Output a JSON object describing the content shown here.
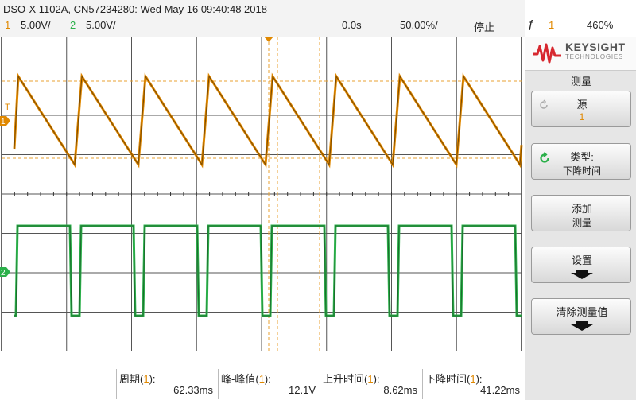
{
  "header": {
    "title": "DSO-X 1102A, CN57234280: Wed May 16 09:40:48 2018",
    "ch1_num": "1",
    "ch1_scale": "5.00V/",
    "ch2_num": "2",
    "ch2_scale": "5.00V/",
    "time_offset": "0.0s",
    "time_scale": "50.00%/",
    "run_state": "停止",
    "trigger_source": "1",
    "trigger_level": "460%"
  },
  "colors": {
    "ch1": "#e08800",
    "ch2": "#2bb04a",
    "grid": "#444444",
    "brand": "#d7282f"
  },
  "markers": {
    "ch1": "1",
    "ch2": "2",
    "trigger": "T"
  },
  "brand": {
    "name": "KEYSIGHT",
    "sub": "TECHNOLOGIES",
    "icon": "keysight-wave-logo"
  },
  "panel": {
    "title": "测量",
    "softkeys": [
      {
        "label": "源",
        "value": "1",
        "icon": "rotate-icon"
      },
      {
        "label": "类型:",
        "value": "下降时间",
        "icon": "rotate-knob-icon"
      },
      {
        "label": "添加",
        "value": "测量"
      },
      {
        "label": "设置",
        "icon": "down-arrow-icon"
      },
      {
        "label": "清除测量值",
        "icon": "down-arrow-icon"
      }
    ]
  },
  "measurements": [
    {
      "name": "周期",
      "channel": "1",
      "value": "62.33ms"
    },
    {
      "name": "峰-峰值",
      "channel": "1",
      "value": "12.1V"
    },
    {
      "name": "上升时间",
      "channel": "1",
      "value": "8.62ms"
    },
    {
      "name": "下降时间",
      "channel": "1",
      "value": "41.22ms"
    }
  ]
}
